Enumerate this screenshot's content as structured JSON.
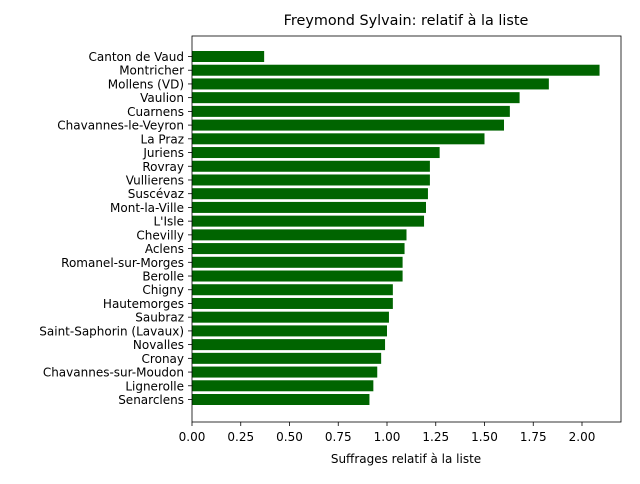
{
  "chart_data": {
    "type": "bar",
    "orientation": "horizontal",
    "title": "Freymond Sylvain: relatif à la liste",
    "xlabel": "Suffrages relatif à la liste",
    "ylabel": "",
    "xlim": [
      0,
      2.2
    ],
    "xticks": [
      "0.00",
      "0.25",
      "0.50",
      "0.75",
      "1.00",
      "1.25",
      "1.50",
      "1.75",
      "2.00"
    ],
    "grid": false,
    "bar_color": "#006400",
    "categories": [
      "Canton de Vaud",
      "Montricher",
      "Mollens (VD)",
      "Vaulion",
      "Cuarnens",
      "Chavannes-le-Veyron",
      "La Praz",
      "Juriens",
      "Rovray",
      "Vullierens",
      "Suscévaz",
      "Mont-la-Ville",
      "L'Isle",
      "Chevilly",
      "Aclens",
      "Romanel-sur-Morges",
      "Berolle",
      "Chigny",
      "Hautemorges",
      "Saubraz",
      "Saint-Saphorin (Lavaux)",
      "Novalles",
      "Cronay",
      "Chavannes-sur-Moudon",
      "Lignerolle",
      "Senarclens"
    ],
    "values": [
      0.37,
      2.09,
      1.83,
      1.68,
      1.63,
      1.6,
      1.5,
      1.27,
      1.22,
      1.22,
      1.21,
      1.2,
      1.19,
      1.1,
      1.09,
      1.08,
      1.08,
      1.03,
      1.03,
      1.01,
      1.0,
      0.99,
      0.97,
      0.95,
      0.93,
      0.91
    ]
  }
}
